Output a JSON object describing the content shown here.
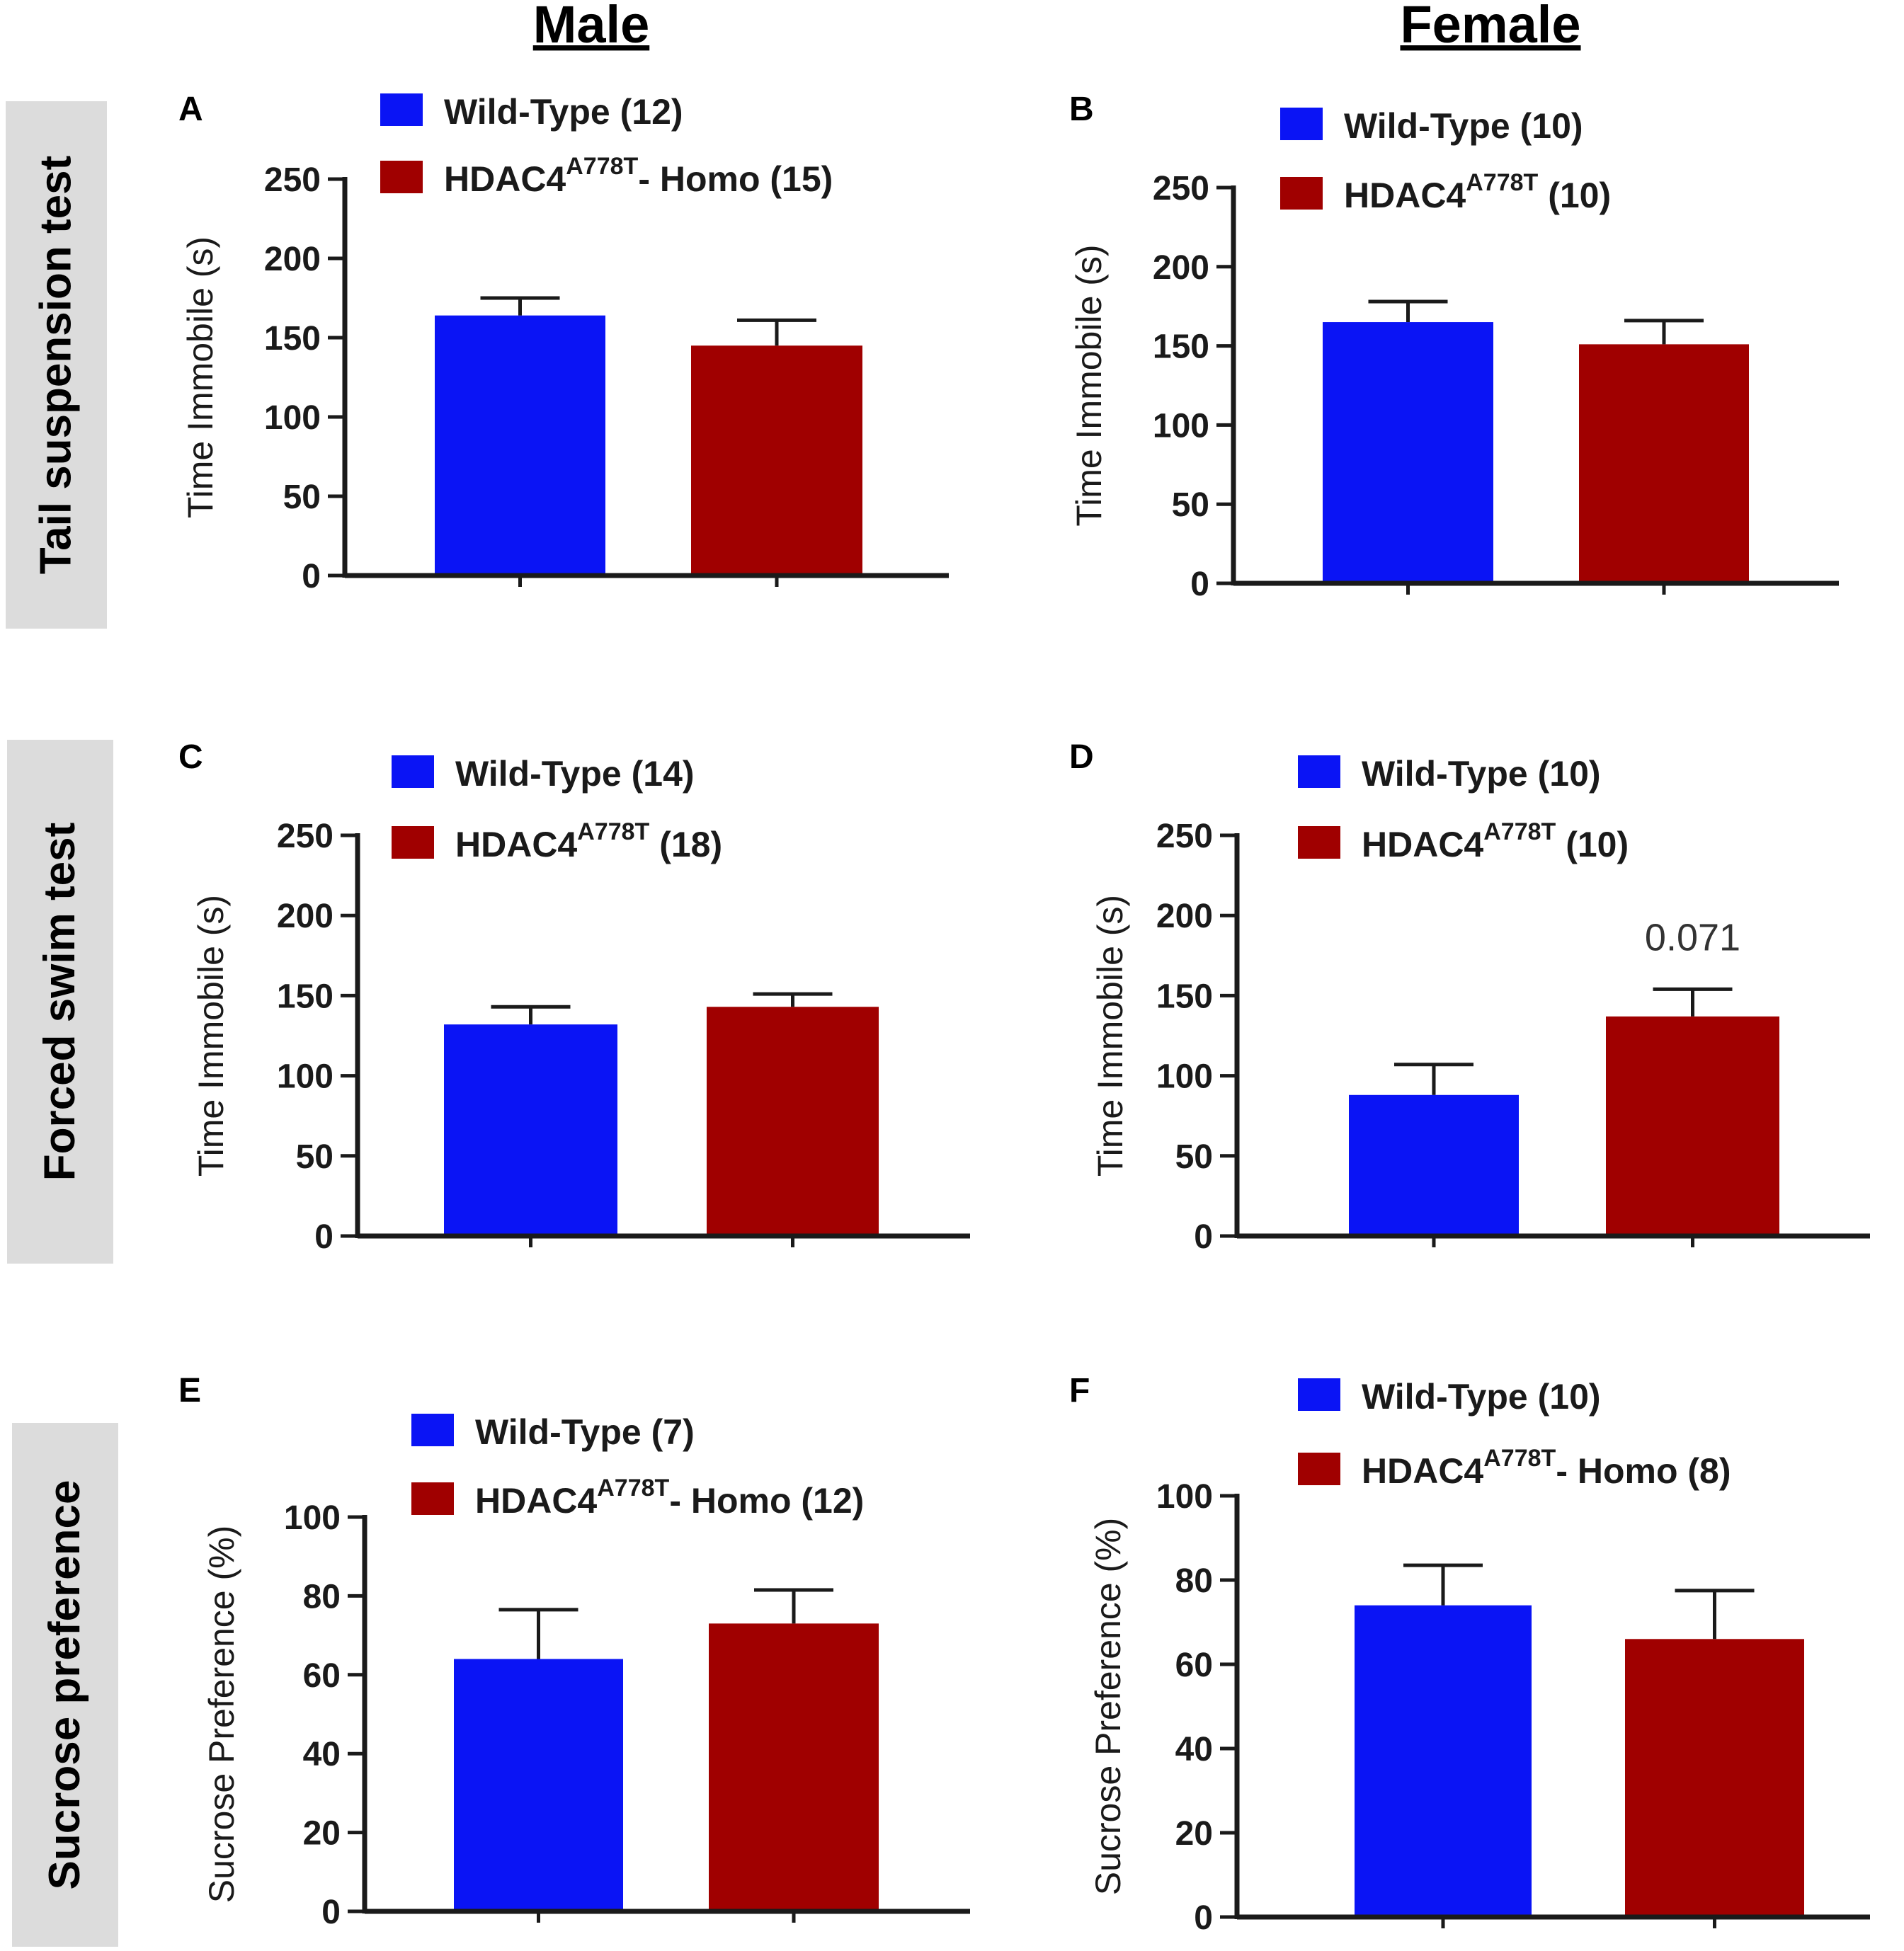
{
  "figure": {
    "column_titles": [
      "Male",
      "Female"
    ],
    "row_labels": [
      "Tail suspension test",
      "Forced swim test",
      "Sucrose preference"
    ]
  },
  "colors": {
    "wild_type": "#0a14f5",
    "hdac4": "#a00000",
    "axis": "#1a1a1a",
    "row_label_bg": "#dcdcdc"
  },
  "chart_data": [
    {
      "panel": "A",
      "type": "bar",
      "ylabel": "Time Immobile (s)",
      "ylim": [
        0,
        250
      ],
      "yticks": [
        0,
        50,
        100,
        150,
        200,
        250
      ],
      "series": [
        {
          "name": "Wild-Type (12)",
          "legend_main": "Wild-Type (12)",
          "legend_sup": "",
          "legend_tail": "",
          "value": 164,
          "error": 11,
          "color": "#0a14f5"
        },
        {
          "name": "HDAC4A778T- Homo (15)",
          "legend_main": "HDAC4",
          "legend_sup": "A778T",
          "legend_tail": "- Homo (15)",
          "value": 145,
          "error": 16,
          "color": "#a00000"
        }
      ],
      "annotation": ""
    },
    {
      "panel": "B",
      "type": "bar",
      "ylabel": "Time Immobile (s)",
      "ylim": [
        0,
        250
      ],
      "yticks": [
        0,
        50,
        100,
        150,
        200,
        250
      ],
      "series": [
        {
          "name": "Wild-Type (10)",
          "legend_main": "Wild-Type (10)",
          "legend_sup": "",
          "legend_tail": "",
          "value": 165,
          "error": 13,
          "color": "#0a14f5"
        },
        {
          "name": "HDAC4A778T (10)",
          "legend_main": "HDAC4",
          "legend_sup": "A778T",
          "legend_tail": " (10)",
          "value": 151,
          "error": 15,
          "color": "#a00000"
        }
      ],
      "annotation": ""
    },
    {
      "panel": "C",
      "type": "bar",
      "ylabel": "Time Immobile (s)",
      "ylim": [
        0,
        250
      ],
      "yticks": [
        0,
        50,
        100,
        150,
        200,
        250
      ],
      "series": [
        {
          "name": "Wild-Type (14)",
          "legend_main": "Wild-Type (14)",
          "legend_sup": "",
          "legend_tail": "",
          "value": 132,
          "error": 11,
          "color": "#0a14f5"
        },
        {
          "name": "HDAC4A778T (18)",
          "legend_main": "HDAC4",
          "legend_sup": "A778T",
          "legend_tail": " (18)",
          "value": 143,
          "error": 8,
          "color": "#a00000"
        }
      ],
      "annotation": ""
    },
    {
      "panel": "D",
      "type": "bar",
      "ylabel": "Time Immobile (s)",
      "ylim": [
        0,
        250
      ],
      "yticks": [
        0,
        50,
        100,
        150,
        200,
        250
      ],
      "series": [
        {
          "name": "Wild-Type (10)",
          "legend_main": "Wild-Type (10)",
          "legend_sup": "",
          "legend_tail": "",
          "value": 88,
          "error": 19,
          "color": "#0a14f5"
        },
        {
          "name": "HDAC4A778T (10)",
          "legend_main": "HDAC4",
          "legend_sup": "A778T",
          "legend_tail": " (10)",
          "value": 137,
          "error": 17,
          "color": "#a00000"
        }
      ],
      "annotation": "0.071"
    },
    {
      "panel": "E",
      "type": "bar",
      "ylabel": "Sucrose Preference (%)",
      "ylim": [
        0,
        100
      ],
      "yticks": [
        0,
        20,
        40,
        60,
        80,
        100
      ],
      "series": [
        {
          "name": "Wild-Type (7)",
          "legend_main": "Wild-Type (7)",
          "legend_sup": "",
          "legend_tail": "",
          "value": 64,
          "error": 12.5,
          "color": "#0a14f5"
        },
        {
          "name": "HDAC4A778T- Homo (12)",
          "legend_main": "HDAC4",
          "legend_sup": "A778T",
          "legend_tail": "- Homo (12)",
          "value": 73,
          "error": 8.5,
          "color": "#a00000"
        }
      ],
      "annotation": ""
    },
    {
      "panel": "F",
      "type": "bar",
      "ylabel": "Sucrose Preference (%)",
      "ylim": [
        0,
        100
      ],
      "yticks": [
        0,
        20,
        40,
        60,
        80,
        100
      ],
      "series": [
        {
          "name": "Wild-Type (10)",
          "legend_main": "Wild-Type (10)",
          "legend_sup": "",
          "legend_tail": "",
          "value": 74,
          "error": 9.5,
          "color": "#0a14f5"
        },
        {
          "name": "HDAC4A778T- Homo (8)",
          "legend_main": "HDAC4",
          "legend_sup": "A778T",
          "legend_tail": "- Homo (8)",
          "value": 66,
          "error": 11.5,
          "color": "#a00000"
        }
      ],
      "annotation": ""
    }
  ]
}
